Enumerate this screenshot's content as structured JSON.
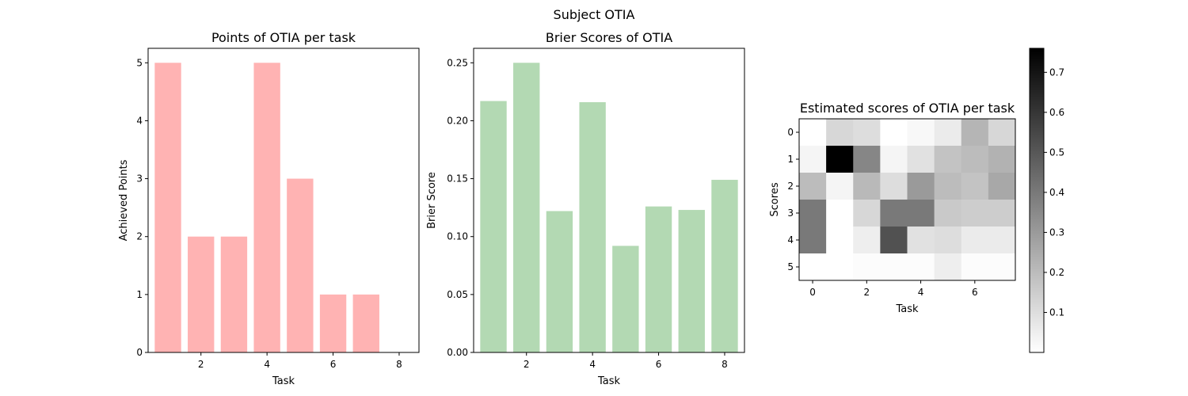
{
  "suptitle": "Subject OTIA",
  "chart_data": [
    {
      "type": "bar",
      "title": "Points of OTIA per task",
      "xlabel": "Task",
      "ylabel": "Achieved Points",
      "x": [
        1,
        2,
        3,
        4,
        5,
        6,
        7,
        8
      ],
      "values": [
        5,
        2,
        2,
        5,
        3,
        1,
        1,
        0
      ],
      "xlim": [
        0.4,
        8.6
      ],
      "ylim": [
        0,
        5.25
      ],
      "xticks": [
        2,
        4,
        6,
        8
      ],
      "yticks": [
        0,
        1,
        2,
        3,
        4,
        5
      ],
      "xtick_labels": [
        "2",
        "4",
        "6",
        "8"
      ],
      "ytick_labels": [
        "0",
        "1",
        "2",
        "3",
        "4",
        "5"
      ],
      "color": "#ffb3b3"
    },
    {
      "type": "bar",
      "title": "Brier Scores of OTIA",
      "xlabel": "Task",
      "ylabel": "Brier Score",
      "x": [
        1,
        2,
        3,
        4,
        5,
        6,
        7,
        8
      ],
      "values": [
        0.217,
        0.25,
        0.122,
        0.216,
        0.092,
        0.126,
        0.123,
        0.149
      ],
      "xlim": [
        0.4,
        8.6
      ],
      "ylim": [
        0,
        0.2625
      ],
      "xticks": [
        2,
        4,
        6,
        8
      ],
      "yticks": [
        0,
        0.05,
        0.1,
        0.15,
        0.2,
        0.25
      ],
      "xtick_labels": [
        "2",
        "4",
        "6",
        "8"
      ],
      "ytick_labels": [
        "0.00",
        "0.05",
        "0.10",
        "0.15",
        "0.20",
        "0.25"
      ],
      "color": "#b3d9b3"
    },
    {
      "type": "heatmap",
      "title": "Estimated scores of OTIA per task",
      "xlabel": "Task",
      "ylabel": "Scores",
      "colormap": "gray_r",
      "vmin": 0,
      "vmax": 0.76,
      "xticks": [
        0,
        2,
        4,
        6
      ],
      "yticks": [
        0,
        1,
        2,
        3,
        4,
        5
      ],
      "xtick_labels": [
        "0",
        "2",
        "4",
        "6"
      ],
      "ytick_labels": [
        "0",
        "1",
        "2",
        "3",
        "4",
        "5"
      ],
      "matrix": [
        [
          0.0,
          0.12,
          0.1,
          0.0,
          0.02,
          0.06,
          0.22,
          0.12
        ],
        [
          0.03,
          0.76,
          0.36,
          0.03,
          0.09,
          0.18,
          0.2,
          0.23
        ],
        [
          0.2,
          0.03,
          0.21,
          0.1,
          0.3,
          0.2,
          0.18,
          0.26
        ],
        [
          0.4,
          0.0,
          0.12,
          0.4,
          0.4,
          0.16,
          0.15,
          0.15
        ],
        [
          0.4,
          0.0,
          0.05,
          0.52,
          0.09,
          0.1,
          0.06,
          0.06
        ],
        [
          0.0,
          0.0,
          0.01,
          0.01,
          0.01,
          0.05,
          0.01,
          0.01
        ]
      ],
      "colorbar_ticks": [
        0.1,
        0.2,
        0.3,
        0.4,
        0.5,
        0.6,
        0.7
      ],
      "colorbar_tick_labels": [
        "0.1",
        "0.2",
        "0.3",
        "0.4",
        "0.5",
        "0.6",
        "0.7"
      ]
    }
  ]
}
